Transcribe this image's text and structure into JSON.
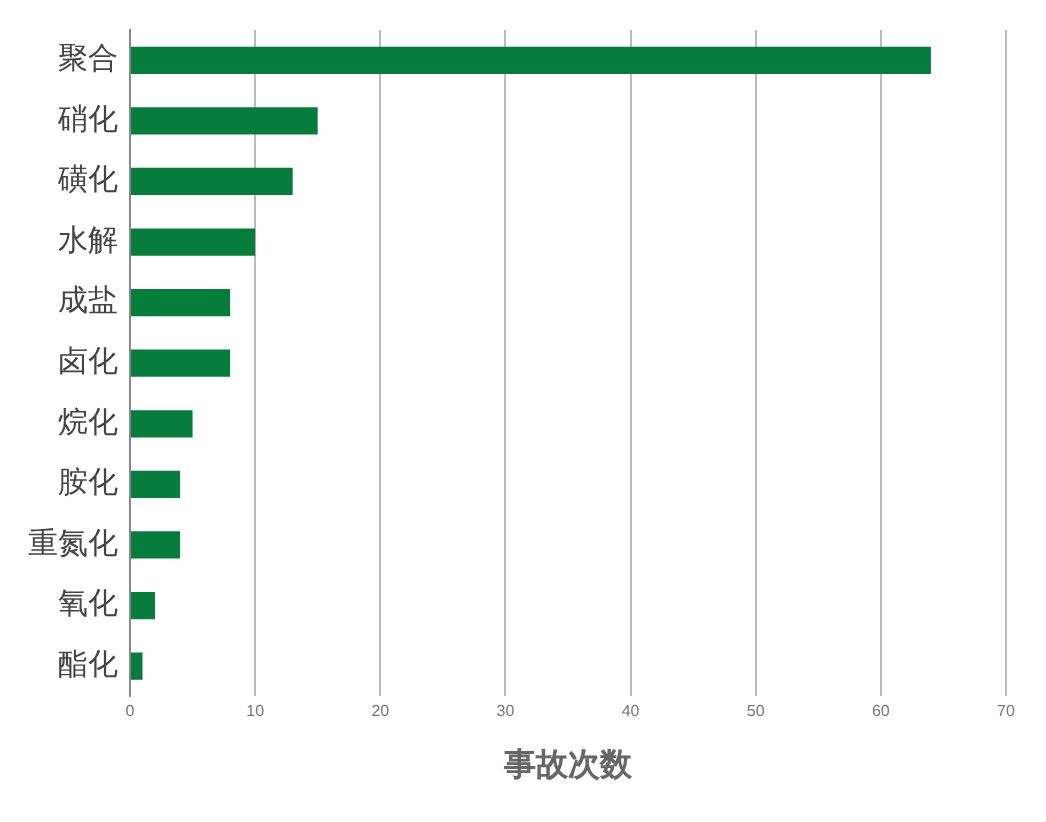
{
  "chart_data": {
    "type": "bar",
    "orientation": "horizontal",
    "xlabel": "事故次数",
    "categories": [
      "聚合",
      "硝化",
      "磺化",
      "水解",
      "成盐",
      "卤化",
      "烷化",
      "胺化",
      "重氮化",
      "氧化",
      "酯化"
    ],
    "values": [
      64,
      15,
      13,
      10,
      8,
      8,
      5,
      4,
      4,
      2,
      1
    ],
    "color": "#067d3d",
    "xlim": [
      0,
      70
    ],
    "xticks": [
      0,
      10,
      20,
      30,
      40,
      50,
      60,
      70
    ],
    "grid": "x",
    "legend": false
  }
}
